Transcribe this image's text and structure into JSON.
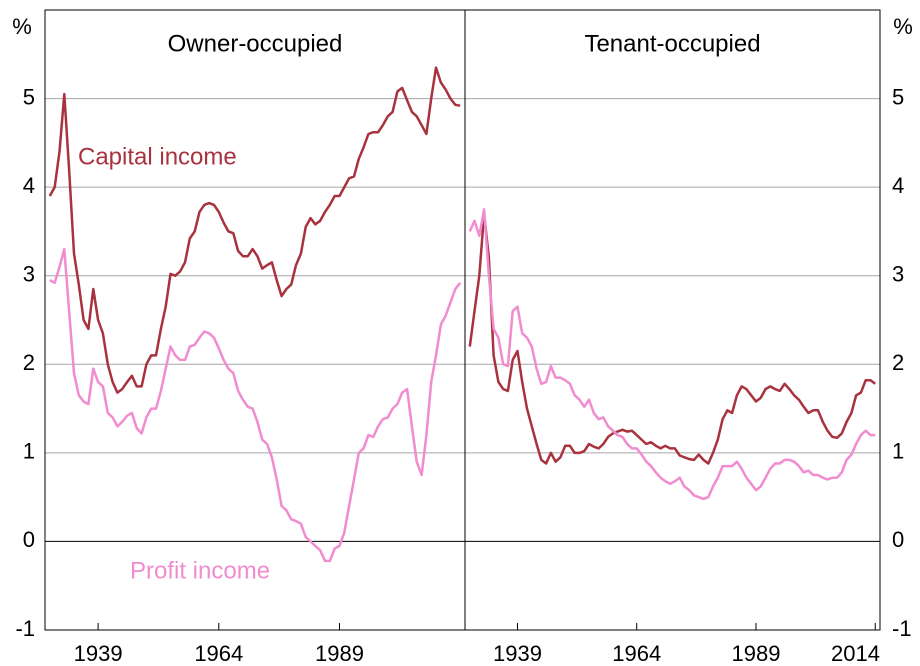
{
  "chart_data": [
    {
      "type": "line",
      "title": "Owner-occupied",
      "ylabel": "%",
      "ylabel_side": "left",
      "x": [
        1929,
        1930,
        1931,
        1932,
        1933,
        1934,
        1935,
        1936,
        1937,
        1938,
        1939,
        1940,
        1941,
        1942,
        1943,
        1944,
        1945,
        1946,
        1947,
        1948,
        1949,
        1950,
        1951,
        1952,
        1953,
        1954,
        1955,
        1956,
        1957,
        1958,
        1959,
        1960,
        1961,
        1962,
        1963,
        1964,
        1965,
        1966,
        1967,
        1968,
        1969,
        1970,
        1971,
        1972,
        1973,
        1974,
        1975,
        1976,
        1977,
        1978,
        1979,
        1980,
        1981,
        1982,
        1983,
        1984,
        1985,
        1986,
        1987,
        1988,
        1989,
        1990,
        1991,
        1992,
        1993,
        1994,
        1995,
        1996,
        1997,
        1998,
        1999,
        2000,
        2001,
        2002,
        2003,
        2004,
        2005,
        2006,
        2007,
        2008,
        2009,
        2010,
        2011,
        2012,
        2013,
        2014
      ],
      "series": [
        {
          "name": "Capital income",
          "color": "#a8323e",
          "values": [
            3.9,
            4.0,
            4.4,
            5.05,
            4.2,
            3.25,
            2.9,
            2.5,
            2.4,
            2.85,
            2.5,
            2.35,
            2.0,
            1.8,
            1.68,
            1.72,
            1.8,
            1.87,
            1.75,
            1.75,
            2.0,
            2.1,
            2.1,
            2.4,
            2.65,
            3.02,
            3.0,
            3.05,
            3.15,
            3.42,
            3.5,
            3.72,
            3.8,
            3.82,
            3.8,
            3.72,
            3.6,
            3.5,
            3.48,
            3.28,
            3.22,
            3.22,
            3.3,
            3.22,
            3.08,
            3.12,
            3.15,
            2.95,
            2.77,
            2.85,
            2.9,
            3.12,
            3.25,
            3.55,
            3.65,
            3.58,
            3.62,
            3.72,
            3.8,
            3.9,
            3.9,
            4.0,
            4.1,
            4.12,
            4.32,
            4.45,
            4.6,
            4.62,
            4.62,
            4.7,
            4.8,
            4.85,
            5.08,
            5.12,
            4.98,
            4.85,
            4.8,
            4.7,
            4.6,
            5.0,
            5.35,
            5.18,
            5.1,
            5.0,
            4.93,
            4.92
          ]
        },
        {
          "name": "Profit income",
          "color": "#f08ccf",
          "values": [
            2.95,
            2.92,
            3.1,
            3.3,
            2.6,
            1.9,
            1.65,
            1.58,
            1.55,
            1.95,
            1.8,
            1.75,
            1.45,
            1.4,
            1.3,
            1.35,
            1.42,
            1.45,
            1.28,
            1.22,
            1.4,
            1.5,
            1.5,
            1.7,
            1.95,
            2.2,
            2.1,
            2.05,
            2.05,
            2.2,
            2.22,
            2.3,
            2.37,
            2.35,
            2.3,
            2.18,
            2.05,
            1.95,
            1.9,
            1.7,
            1.6,
            1.52,
            1.5,
            1.35,
            1.15,
            1.1,
            0.95,
            0.7,
            0.4,
            0.35,
            0.25,
            0.23,
            0.2,
            0.05,
            0.0,
            -0.05,
            -0.1,
            -0.22,
            -0.22,
            -0.08,
            -0.05,
            0.1,
            0.4,
            0.7,
            1.0,
            1.05,
            1.2,
            1.18,
            1.3,
            1.38,
            1.4,
            1.5,
            1.55,
            1.68,
            1.72,
            1.3,
            0.9,
            0.75,
            1.2,
            1.8,
            2.1,
            2.45,
            2.55,
            2.7,
            2.85,
            2.92
          ]
        }
      ],
      "xlim": [
        1928,
        2015
      ],
      "xticks": [
        1939,
        1964,
        1989
      ],
      "ylim": [
        -1,
        6
      ],
      "yticks": [
        -1,
        0,
        1,
        2,
        3,
        4,
        5
      ],
      "grid": true
    },
    {
      "type": "line",
      "title": "Tenant-occupied",
      "ylabel": "%",
      "ylabel_side": "right",
      "x": [
        1929,
        1930,
        1931,
        1932,
        1933,
        1934,
        1935,
        1936,
        1937,
        1938,
        1939,
        1940,
        1941,
        1942,
        1943,
        1944,
        1945,
        1946,
        1947,
        1948,
        1949,
        1950,
        1951,
        1952,
        1953,
        1954,
        1955,
        1956,
        1957,
        1958,
        1959,
        1960,
        1961,
        1962,
        1963,
        1964,
        1965,
        1966,
        1967,
        1968,
        1969,
        1970,
        1971,
        1972,
        1973,
        1974,
        1975,
        1976,
        1977,
        1978,
        1979,
        1980,
        1981,
        1982,
        1983,
        1984,
        1985,
        1986,
        1987,
        1988,
        1989,
        1990,
        1991,
        1992,
        1993,
        1994,
        1995,
        1996,
        1997,
        1998,
        1999,
        2000,
        2001,
        2002,
        2003,
        2004,
        2005,
        2006,
        2007,
        2008,
        2009,
        2010,
        2011,
        2012,
        2013,
        2014
      ],
      "series": [
        {
          "color": "#a8323e",
          "values": [
            2.2,
            2.6,
            3.0,
            3.7,
            3.2,
            2.1,
            1.8,
            1.72,
            1.7,
            2.05,
            2.15,
            1.8,
            1.5,
            1.3,
            1.1,
            0.92,
            0.88,
            1.0,
            0.9,
            0.95,
            1.08,
            1.08,
            1.0,
            1.0,
            1.02,
            1.1,
            1.07,
            1.05,
            1.1,
            1.18,
            1.22,
            1.24,
            1.26,
            1.24,
            1.25,
            1.2,
            1.15,
            1.1,
            1.12,
            1.08,
            1.05,
            1.08,
            1.05,
            1.05,
            0.97,
            0.95,
            0.93,
            0.92,
            0.98,
            0.92,
            0.88,
            1.0,
            1.15,
            1.38,
            1.48,
            1.45,
            1.65,
            1.75,
            1.72,
            1.65,
            1.58,
            1.62,
            1.72,
            1.75,
            1.72,
            1.7,
            1.78,
            1.72,
            1.65,
            1.6,
            1.52,
            1.45,
            1.48,
            1.48,
            1.35,
            1.25,
            1.18,
            1.17,
            1.22,
            1.35,
            1.45,
            1.65,
            1.68,
            1.82,
            1.82,
            1.78
          ]
        },
        {
          "color": "#f08ccf",
          "values": [
            3.5,
            3.62,
            3.45,
            3.75,
            3.0,
            2.4,
            2.3,
            2.0,
            1.98,
            2.6,
            2.65,
            2.35,
            2.3,
            2.2,
            1.95,
            1.78,
            1.8,
            1.98,
            1.85,
            1.85,
            1.82,
            1.78,
            1.65,
            1.6,
            1.52,
            1.6,
            1.45,
            1.38,
            1.4,
            1.3,
            1.25,
            1.2,
            1.18,
            1.1,
            1.05,
            1.05,
            0.98,
            0.9,
            0.85,
            0.78,
            0.72,
            0.68,
            0.65,
            0.68,
            0.72,
            0.62,
            0.58,
            0.52,
            0.5,
            0.48,
            0.5,
            0.62,
            0.72,
            0.85,
            0.85,
            0.85,
            0.9,
            0.82,
            0.72,
            0.65,
            0.58,
            0.62,
            0.72,
            0.82,
            0.88,
            0.88,
            0.92,
            0.92,
            0.9,
            0.85,
            0.78,
            0.8,
            0.75,
            0.75,
            0.72,
            0.7,
            0.72,
            0.72,
            0.78,
            0.92,
            0.98,
            1.1,
            1.2,
            1.25,
            1.2,
            1.2
          ]
        }
      ],
      "xlim": [
        1928,
        2015
      ],
      "xticks": [
        1939,
        1964,
        1989,
        2014
      ],
      "ylim": [
        -1,
        6
      ],
      "yticks": [
        -1,
        0,
        1,
        2,
        3,
        4,
        5
      ],
      "grid": true
    }
  ]
}
